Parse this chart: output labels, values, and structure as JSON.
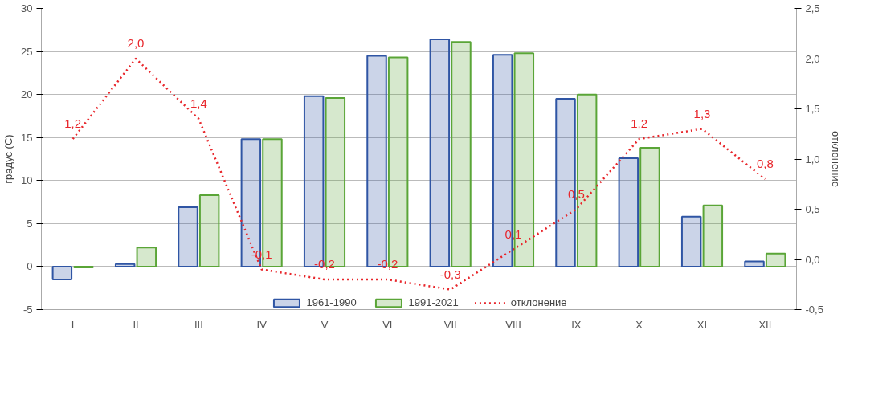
{
  "chart_data": {
    "type": "bar",
    "categories": [
      "I",
      "II",
      "III",
      "IV",
      "V",
      "VI",
      "VII",
      "VIII",
      "IX",
      "X",
      "XI",
      "XII"
    ],
    "ylabel": "градус (C)",
    "y2label": "отклонение",
    "ylim": [
      -5,
      30
    ],
    "yticks": [
      -5,
      0,
      5,
      10,
      15,
      20,
      25,
      30
    ],
    "y2lim": [
      -0.5,
      2.5
    ],
    "y2ticks": [
      {
        "value": -0.5,
        "label": "-0,5"
      },
      {
        "value": 0,
        "label": "0,0"
      },
      {
        "value": 0.5,
        "label": "0,5"
      },
      {
        "value": 1,
        "label": "1,0"
      },
      {
        "value": 1.5,
        "label": "1,5"
      },
      {
        "value": 2,
        "label": "2,0"
      },
      {
        "value": 2.5,
        "label": "2,5"
      }
    ],
    "grid": "y",
    "legend": "bottom",
    "series": [
      {
        "name": "1961-1990",
        "color": "#2f55a4",
        "values": [
          -1.5,
          0.3,
          6.9,
          14.8,
          19.8,
          24.5,
          26.4,
          24.6,
          19.5,
          12.6,
          5.8,
          0.6
        ]
      },
      {
        "name": "1991-2021",
        "color": "#5aa537",
        "values": [
          -0.1,
          2.2,
          8.3,
          14.8,
          19.6,
          24.3,
          26.1,
          24.8,
          20.0,
          13.8,
          7.1,
          1.5
        ]
      },
      {
        "name": "отклонение",
        "type": "line",
        "axis": "y2",
        "color": "#e8262b",
        "line_style": "dotted",
        "values": [
          1.2,
          2.0,
          1.4,
          -0.1,
          -0.2,
          -0.2,
          -0.3,
          0.1,
          0.5,
          1.2,
          1.3,
          0.8
        ],
        "value_labels": [
          "1,2",
          "2,0",
          "1,4",
          "-0,1",
          "-0,2",
          "-0,2",
          "-0,3",
          "0,1",
          "0,5",
          "1,2",
          "1,3",
          "0,8"
        ]
      }
    ]
  }
}
